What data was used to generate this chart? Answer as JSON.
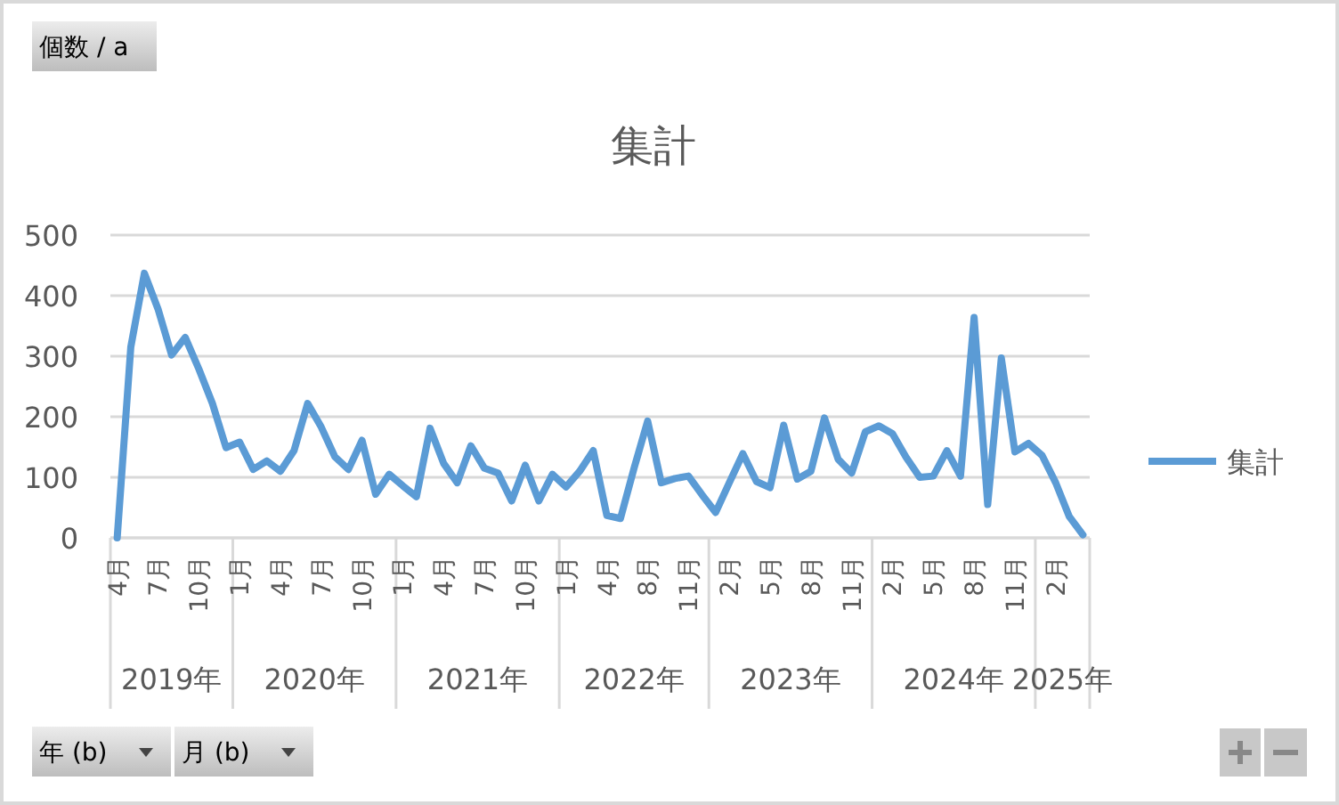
{
  "chart_data": {
    "type": "line",
    "title": "集計",
    "categories": [
      "4月",
      null,
      null,
      "7月",
      null,
      null,
      "10月",
      null,
      null,
      "1月",
      null,
      null,
      "4月",
      null,
      null,
      "7月",
      null,
      null,
      "10月",
      null,
      null,
      "1月",
      null,
      null,
      "4月",
      null,
      null,
      "7月",
      null,
      null,
      "10月",
      null,
      null,
      "1月",
      null,
      null,
      "4月",
      null,
      null,
      "8月",
      null,
      null,
      "11月",
      null,
      null,
      "2月",
      null,
      null,
      "5月",
      null,
      null,
      "8月",
      null,
      null,
      "11月",
      null,
      null,
      "2月",
      null,
      null,
      "5月",
      null,
      null,
      "8月",
      null,
      null,
      "11月",
      null,
      null,
      "2月",
      null,
      null
    ],
    "series": [
      {
        "name": "集計",
        "color": "#5b9bd5",
        "values": [
          0,
          315,
          437,
          378,
          302,
          331,
          279,
          222,
          149,
          158,
          113,
          127,
          110,
          144,
          222,
          183,
          134,
          113,
          161,
          72,
          105,
          86,
          68,
          181,
          123,
          91,
          152,
          115,
          107,
          61,
          120,
          61,
          105,
          84,
          110,
          144,
          37,
          32,
          115,
          193,
          91,
          98,
          102,
          71,
          42,
          91,
          139,
          93,
          83,
          186,
          97,
          110,
          198,
          130,
          107,
          175,
          185,
          172,
          133,
          100,
          102,
          144,
          102,
          364,
          55,
          297,
          142,
          156,
          136,
          91,
          35,
          5
        ]
      }
    ],
    "ylim": [
      0,
      500
    ],
    "yticks": [
      0,
      100,
      200,
      300,
      400,
      500
    ],
    "grid": "y",
    "legend": "right",
    "marker": "none",
    "line_style": "solid",
    "annotations": [
      "個数 / a",
      "年 (b)",
      "月 (b)",
      "2019年",
      "2020年",
      "2021年",
      "2022年",
      "2023年",
      "2024年",
      "2025年"
    ]
  }
}
